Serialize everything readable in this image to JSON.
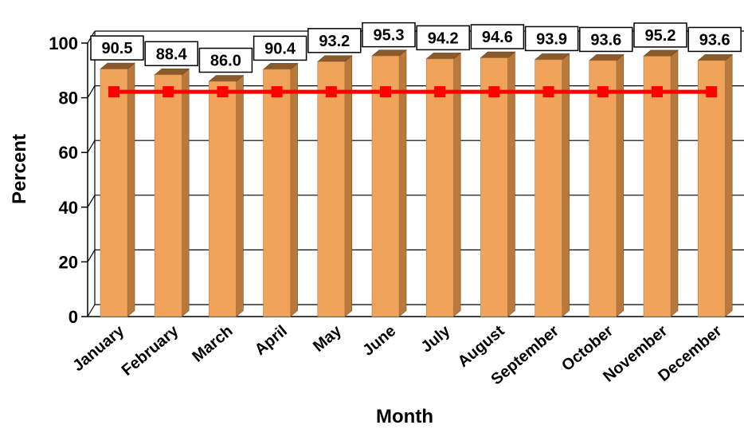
{
  "chart_data": {
    "type": "bar",
    "categories": [
      "January",
      "February",
      "March",
      "April",
      "May",
      "June",
      "July",
      "August",
      "September",
      "October",
      "November",
      "December"
    ],
    "series": [
      {
        "values": [
          90.5,
          88.4,
          86.0,
          90.4,
          93.2,
          95.3,
          94.2,
          94.6,
          93.9,
          93.6,
          95.2,
          93.6
        ],
        "color": "#f0a35a"
      },
      {
        "type": "line",
        "values": [
          80,
          80,
          80,
          80,
          80,
          80,
          80,
          80,
          80,
          80,
          80,
          80
        ],
        "color": "#ff0000"
      }
    ],
    "data_labels": [
      "90.5",
      "88.4",
      "86.0",
      "90.4",
      "93.2",
      "95.3",
      "94.2",
      "94.6",
      "93.9",
      "93.6",
      "95.2",
      "93.6"
    ],
    "y_ticks": [
      "0",
      "20",
      "40",
      "60",
      "80",
      "100"
    ],
    "ylim": [
      0,
      100
    ],
    "xlabel": "Month",
    "ylabel": "Percent",
    "grid": true,
    "legend": false
  }
}
